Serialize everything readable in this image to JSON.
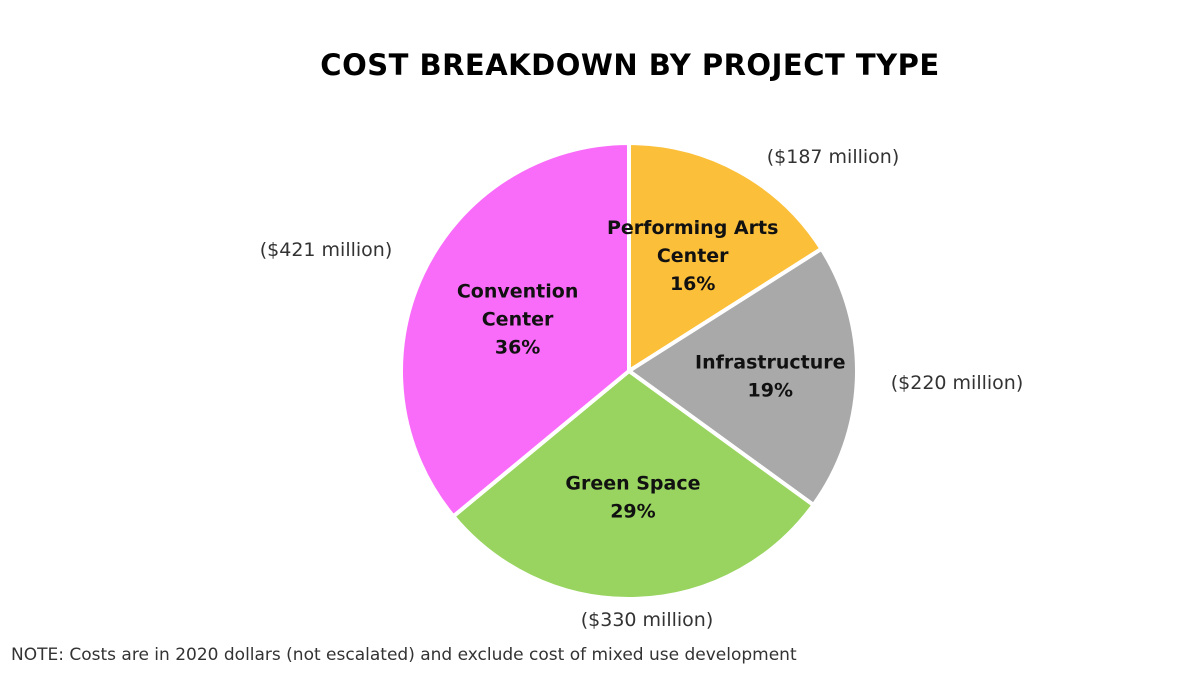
{
  "chart_data": {
    "type": "pie",
    "title": "COST BREAKDOWN BY PROJECT TYPE",
    "slices": [
      {
        "category": "Performing Arts Center",
        "label_lines": [
          "Performing Arts",
          "Center"
        ],
        "percent": 16,
        "percent_label": "16%",
        "value_label": "($187 million)",
        "value": 187,
        "color": "#FBBF3A"
      },
      {
        "category": "Infrastructure",
        "label_lines": [
          "Infrastructure"
        ],
        "percent": 19,
        "percent_label": "19%",
        "value_label": "($220 million)",
        "value": 220,
        "color": "#A9A9A9"
      },
      {
        "category": "Green Space",
        "label_lines": [
          "Green Space"
        ],
        "percent": 29,
        "percent_label": "29%",
        "value_label": "($330 million)",
        "value": 330,
        "color": "#98D45F"
      },
      {
        "category": "Convention Center",
        "label_lines": [
          "Convention",
          "Center"
        ],
        "percent": 36,
        "percent_label": "36%",
        "value_label": "($421 million)",
        "value": 421,
        "color": "#F96BF9"
      }
    ],
    "note": "NOTE: Costs are in 2020 dollars (not escalated) and exclude cost of mixed use development"
  }
}
